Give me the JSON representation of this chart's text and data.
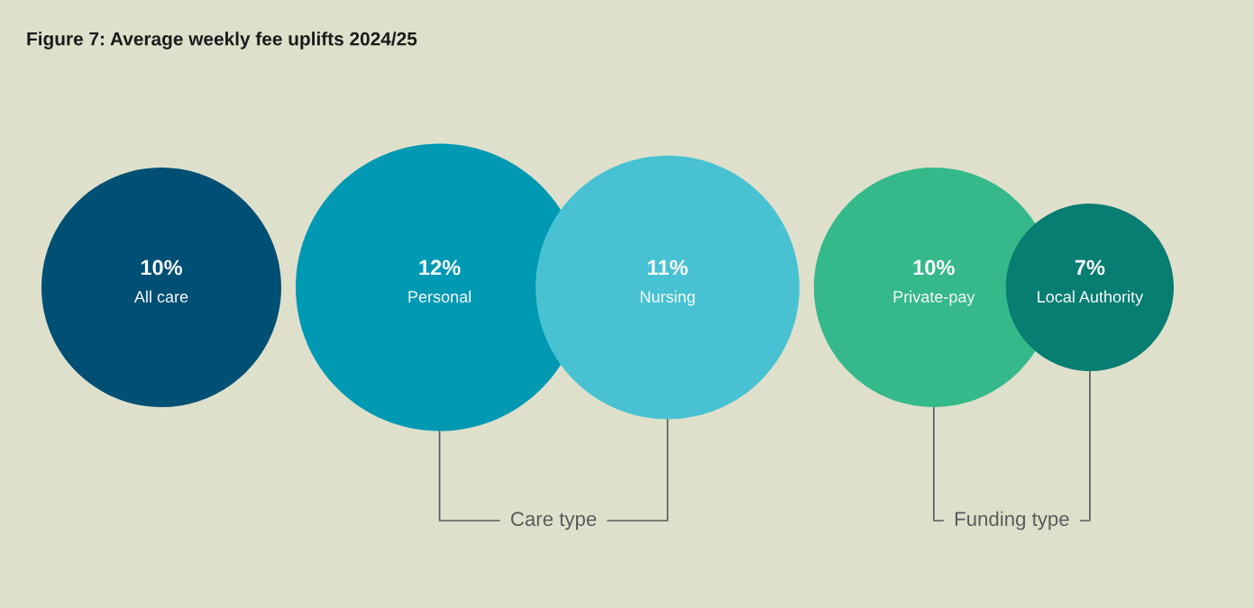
{
  "chart_data": {
    "type": "other",
    "title": "Figure 7: Average weekly fee uplifts 2024/25",
    "categories": [
      "All care",
      "Personal",
      "Nursing",
      "Private-pay",
      "Local Authority"
    ],
    "values": [
      10,
      12,
      11,
      10,
      7
    ],
    "value_labels": [
      "10%",
      "12%",
      "11%",
      "10%",
      "7%"
    ],
    "colors": [
      "#004f74",
      "#0099b4",
      "#48c2d2",
      "#35b98a",
      "#087d71"
    ],
    "annotations": [
      {
        "text": "Care type",
        "x": "Personal"
      },
      {
        "text": "Funding type",
        "x": "Private-pay"
      }
    ]
  }
}
